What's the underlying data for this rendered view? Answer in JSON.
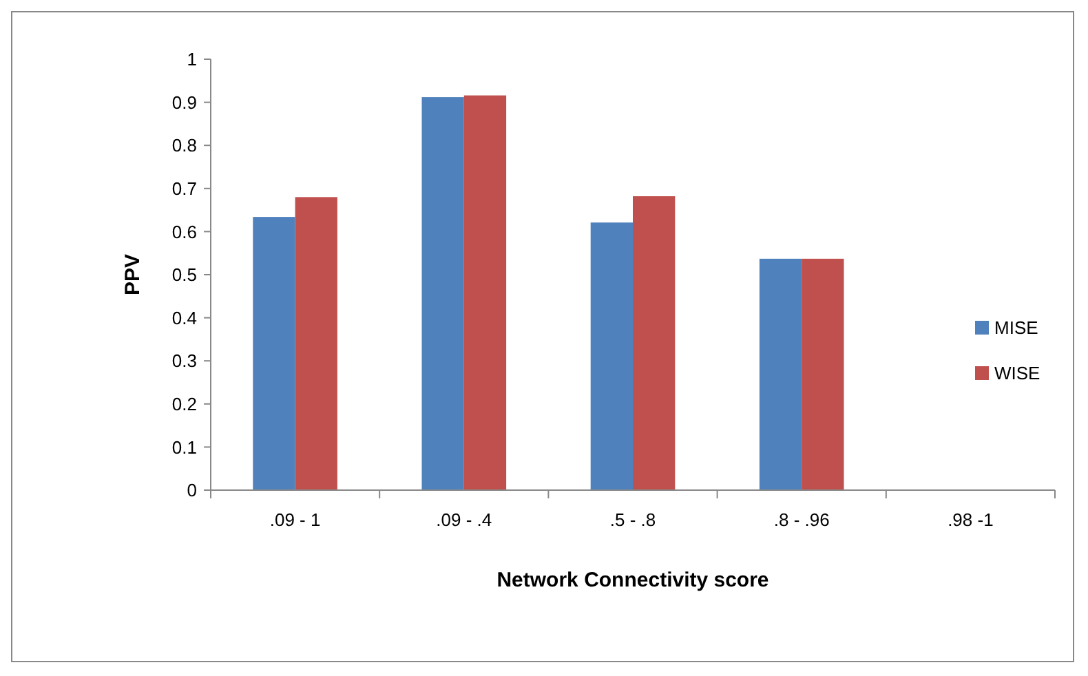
{
  "chart_data": {
    "type": "bar",
    "xlabel": "Network Connectivity score",
    "ylabel": "PPV",
    "categories": [
      ".09 - 1",
      ".09 - .4",
      ".5 - .8",
      ".8 - .96",
      ".98 -1"
    ],
    "series": [
      {
        "name": "MISE",
        "color": "#4f81bd",
        "values": [
          0.634,
          0.912,
          0.621,
          0.537,
          0
        ]
      },
      {
        "name": "WISE",
        "color": "#c0504d",
        "values": [
          0.68,
          0.916,
          0.682,
          0.537,
          0
        ]
      }
    ],
    "ylim": [
      0,
      1
    ],
    "yticks": [
      0,
      0.1,
      0.2,
      0.3,
      0.4,
      0.5,
      0.6,
      0.7,
      0.8,
      0.9,
      1
    ],
    "grid": false,
    "legend": "right"
  }
}
